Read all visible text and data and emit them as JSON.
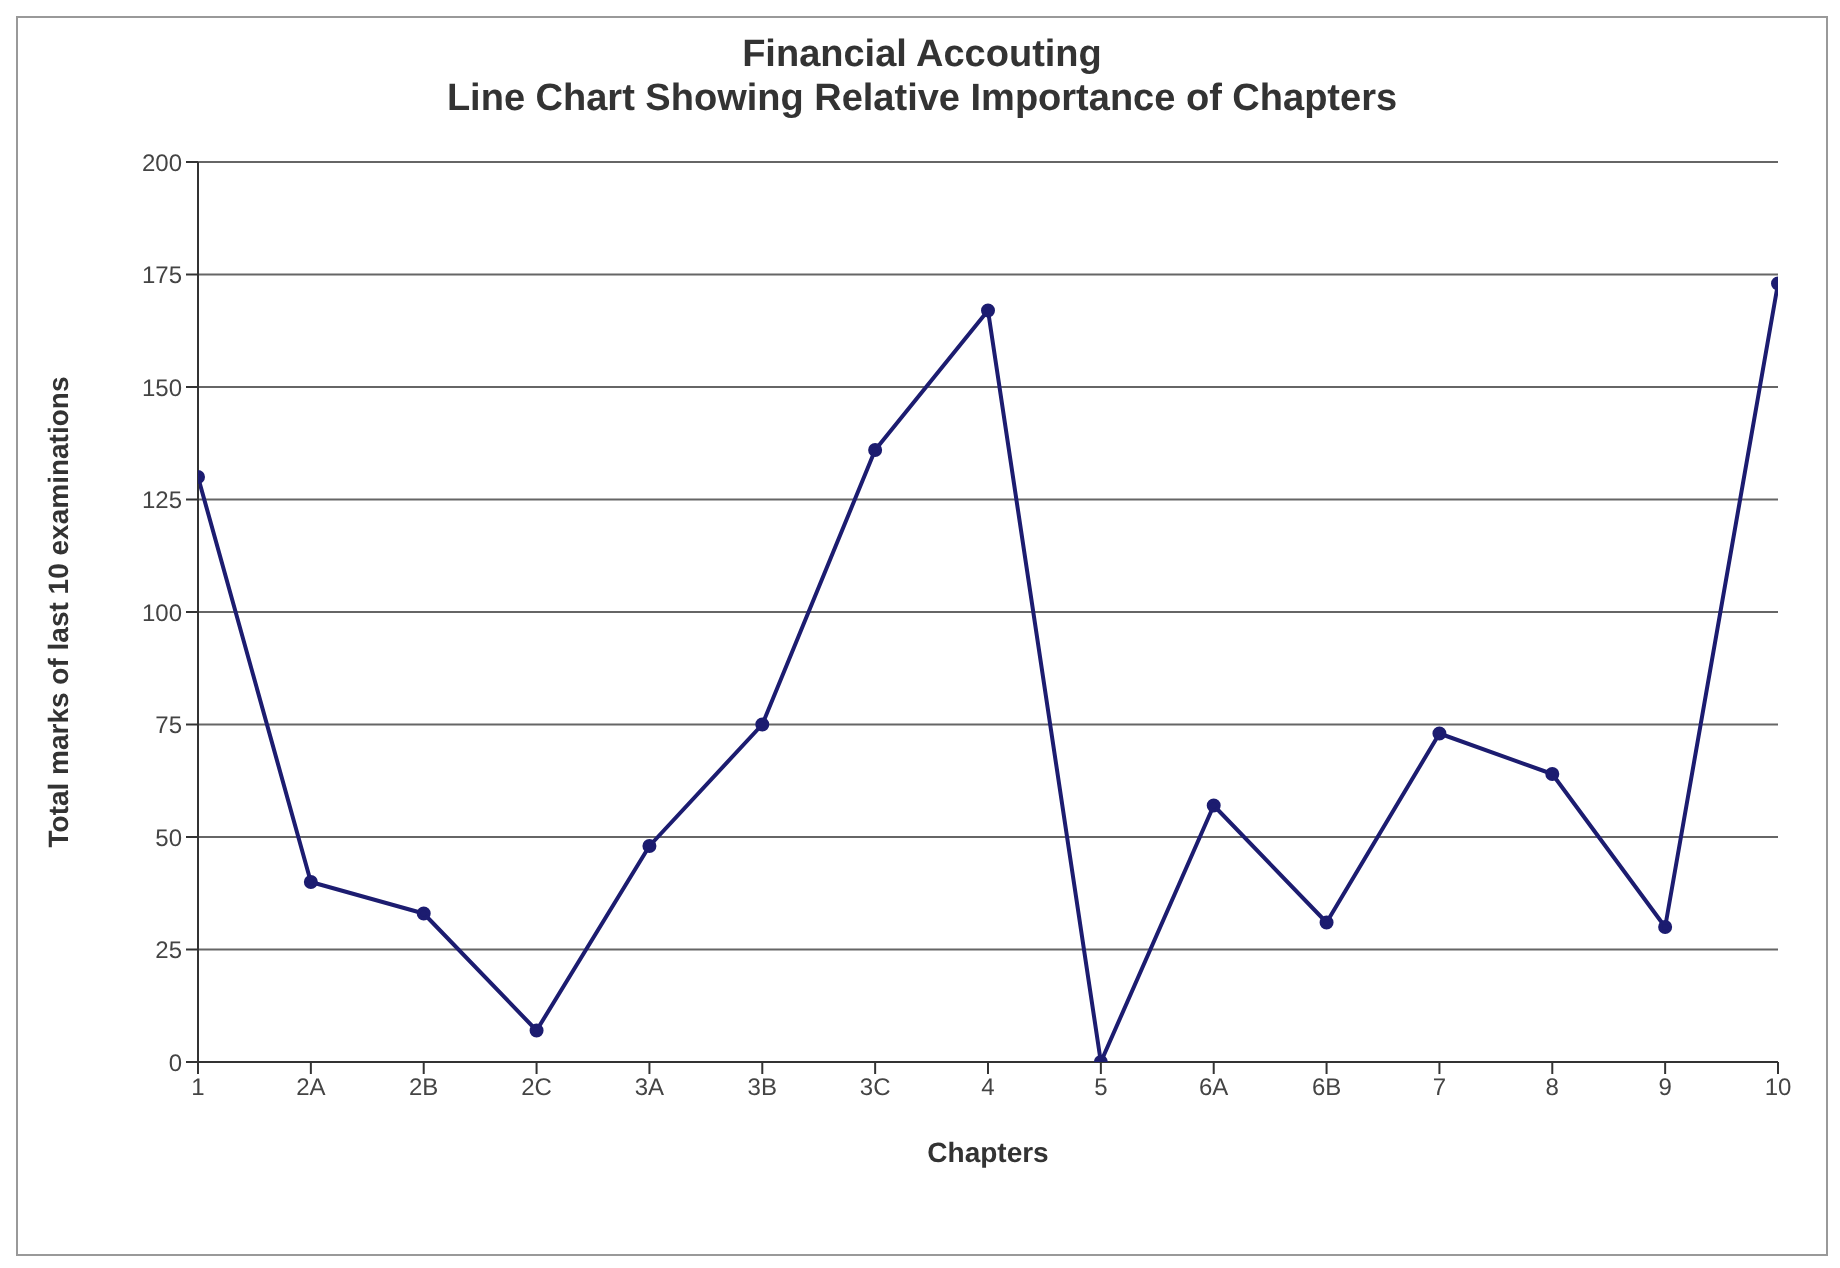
{
  "chart_data": {
    "type": "line",
    "title": "Financial Accouting",
    "subtitle": "Line Chart Showing Relative Importance of Chapters",
    "xlabel": "Chapters",
    "ylabel": "Total marks of last 10 examinations",
    "categories": [
      "1",
      "2A",
      "2B",
      "2C",
      "3A",
      "3B",
      "3C",
      "4",
      "5",
      "6A",
      "6B",
      "7",
      "8",
      "9",
      "10"
    ],
    "series": [
      {
        "color": "#1c1c70",
        "values": [
          130,
          40,
          33,
          7,
          48,
          75,
          136,
          167,
          0,
          57,
          31,
          73,
          64,
          30,
          173
        ]
      }
    ],
    "ylim": [
      0,
      200
    ],
    "yticks": [
      0,
      25,
      50,
      75,
      100,
      125,
      150,
      175,
      200
    ],
    "grid": "y",
    "marker": "circle",
    "line_style": "solid"
  }
}
